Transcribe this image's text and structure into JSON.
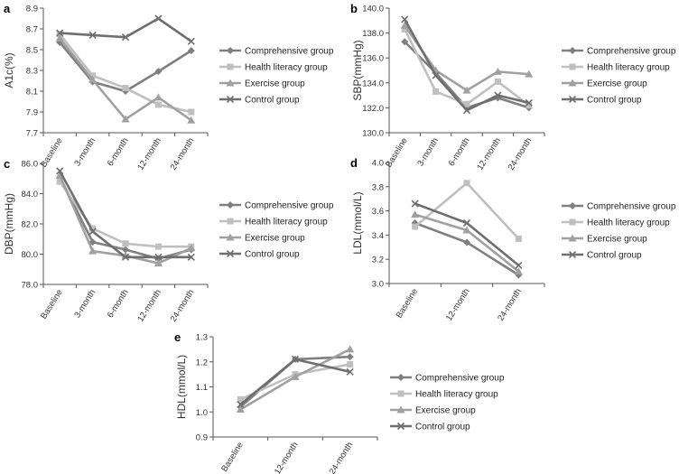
{
  "series_styles": [
    {
      "color": "#7f7f7f",
      "marker": "diamond"
    },
    {
      "color": "#bfbfbf",
      "marker": "square"
    },
    {
      "color": "#a0a0a0",
      "marker": "triangle"
    },
    {
      "color": "#6e6e6e",
      "marker": "x"
    }
  ],
  "chart_data": [
    {
      "id": "a",
      "type": "line",
      "panel": "a",
      "ylabel": "A1c(%)",
      "categories": [
        "Baseline",
        "3-month",
        "6-month",
        "12-month",
        "24-month"
      ],
      "ylim": [
        7.7,
        8.9
      ],
      "yticks": [
        "7.7",
        "7.9",
        "8.1",
        "8.3",
        "8.5",
        "8.7",
        "8.9"
      ],
      "series": [
        {
          "name": "Comprehensive group",
          "values": [
            8.57,
            8.19,
            8.1,
            8.29,
            8.49
          ]
        },
        {
          "name": "Health literacy group",
          "values": [
            8.65,
            8.25,
            8.13,
            7.97,
            7.9
          ]
        },
        {
          "name": "Exercise group",
          "values": [
            8.61,
            8.21,
            7.83,
            8.04,
            7.82
          ]
        },
        {
          "name": "Control group",
          "values": [
            8.66,
            8.64,
            8.62,
            8.8,
            8.58
          ]
        }
      ]
    },
    {
      "id": "b",
      "type": "line",
      "panel": "b",
      "ylabel": "SBP(mmHg)",
      "categories": [
        "Baseline",
        "3-month",
        "6-month",
        "12-month",
        "24-month"
      ],
      "ylim": [
        130,
        140
      ],
      "yticks": [
        "130.0",
        "132.0",
        "134.0",
        "136.0",
        "138.0",
        "140.0"
      ],
      "series": [
        {
          "name": "Comprehensive group",
          "values": [
            137.3,
            134.8,
            132.0,
            132.8,
            132.0
          ]
        },
        {
          "name": "Health literacy group",
          "values": [
            138.3,
            133.3,
            132.3,
            134.1,
            132.2
          ]
        },
        {
          "name": "Exercise group",
          "values": [
            138.6,
            135.0,
            133.4,
            134.9,
            134.7
          ]
        },
        {
          "name": "Control group",
          "values": [
            139.1,
            134.6,
            131.8,
            133.0,
            132.4
          ]
        }
      ]
    },
    {
      "id": "c",
      "type": "line",
      "panel": "c",
      "ylabel": "DBP(mmHg)",
      "categories": [
        "Baseline",
        "3-month",
        "6-month",
        "12-month",
        "24-month"
      ],
      "ylim": [
        78,
        86
      ],
      "yticks": [
        "78.0",
        "80.0",
        "82.0",
        "84.0",
        "86.0"
      ],
      "series": [
        {
          "name": "Comprehensive group",
          "values": [
            85.1,
            80.8,
            80.3,
            79.7,
            80.3
          ]
        },
        {
          "name": "Health literacy group",
          "values": [
            84.8,
            81.7,
            80.7,
            80.5,
            80.5
          ]
        },
        {
          "name": "Exercise group",
          "values": [
            85.2,
            80.2,
            79.9,
            79.4,
            80.4
          ]
        },
        {
          "name": "Control group",
          "values": [
            85.5,
            81.5,
            79.8,
            79.8,
            79.8
          ]
        }
      ]
    },
    {
      "id": "d",
      "type": "line",
      "panel": "d",
      "ylabel": "LDL(mmol/L)",
      "categories": [
        "Baseline",
        "12-month",
        "24-month"
      ],
      "ylim": [
        3.0,
        4.0
      ],
      "yticks": [
        "3.0",
        "3.2",
        "3.4",
        "3.6",
        "3.8",
        "4.0"
      ],
      "series": [
        {
          "name": "Comprehensive group",
          "values": [
            3.5,
            3.34,
            3.07
          ]
        },
        {
          "name": "Health literacy group",
          "values": [
            3.47,
            3.83,
            3.37
          ]
        },
        {
          "name": "Exercise group",
          "values": [
            3.57,
            3.44,
            3.1
          ]
        },
        {
          "name": "Control group",
          "values": [
            3.66,
            3.5,
            3.15
          ]
        }
      ]
    },
    {
      "id": "e",
      "type": "line",
      "panel": "e",
      "ylabel": "HDL(mmol/L)",
      "categories": [
        "Baseline",
        "12-month",
        "24-month"
      ],
      "ylim": [
        0.9,
        1.3
      ],
      "yticks": [
        "0.9",
        "1.0",
        "1.1",
        "1.2",
        "1.3"
      ],
      "series": [
        {
          "name": "Comprehensive group",
          "values": [
            1.02,
            1.21,
            1.22
          ]
        },
        {
          "name": "Health literacy group",
          "values": [
            1.05,
            1.15,
            1.19
          ]
        },
        {
          "name": "Exercise group",
          "values": [
            1.01,
            1.14,
            1.25
          ]
        },
        {
          "name": "Control group",
          "values": [
            1.03,
            1.21,
            1.16
          ]
        }
      ]
    }
  ]
}
